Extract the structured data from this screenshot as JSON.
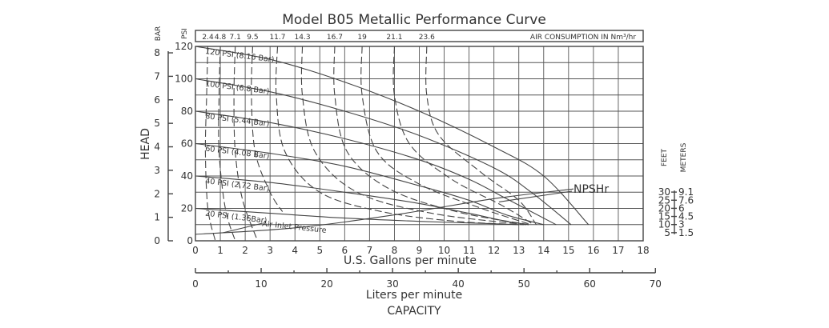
{
  "chart_data": {
    "type": "line",
    "title": "Model B05 Metallic Performance Curve",
    "xlabel": "U.S. Gallons per minute",
    "x2label": "Liters per minute",
    "capacity_label": "CAPACITY",
    "head_label": "HEAD",
    "psi_label": "PSI",
    "bar_label": "BAR",
    "feet_label": "FEET",
    "meters_label": "METERS",
    "air_label": "AIR CONSUMPTION IN Nm³/hr",
    "npshr_label": "NPSHr",
    "xlim": [
      0,
      18
    ],
    "ylim": [
      0,
      120
    ],
    "x_ticks": [
      "0",
      "1",
      "2",
      "3",
      "4",
      "5",
      "6",
      "7",
      "8",
      "9",
      "10",
      "11",
      "12",
      "13",
      "14",
      "15",
      "16",
      "17",
      "18"
    ],
    "y_ticks": [
      "0",
      "20",
      "40",
      "60",
      "80",
      "100",
      "120"
    ],
    "bar_ticks": [
      "0",
      "1",
      "2",
      "3",
      "4",
      "5",
      "6",
      "7",
      "8"
    ],
    "lpm_ticks": [
      "0",
      "10",
      "20",
      "30",
      "40",
      "50",
      "60",
      "70"
    ],
    "feet_ticks": [
      "5",
      "10",
      "15",
      "20",
      "25",
      "30"
    ],
    "meters_ticks": [
      "1.5",
      "3",
      "4.5",
      "6",
      "7.6",
      "9.1"
    ],
    "air_ticks": [
      "2.4",
      "4.8",
      "7.1",
      "9.5",
      "11.7",
      "14.3",
      "16.7",
      "19",
      "21.1",
      "23.6"
    ],
    "pressure_curves": [
      {
        "name": "120 PSI (8.16 Bar)",
        "points": [
          [
            0,
            120
          ],
          [
            3,
            112
          ],
          [
            6,
            98
          ],
          [
            9,
            80
          ],
          [
            12,
            58
          ],
          [
            14,
            40
          ],
          [
            15.8,
            10
          ]
        ]
      },
      {
        "name": "100 PSI (6.8 Bar)",
        "points": [
          [
            0,
            100
          ],
          [
            3,
            92
          ],
          [
            6,
            80
          ],
          [
            9,
            65
          ],
          [
            12,
            45
          ],
          [
            13.5,
            30
          ],
          [
            15.1,
            10
          ]
        ]
      },
      {
        "name": "80 PSI (5.44 Bar)",
        "points": [
          [
            0,
            80
          ],
          [
            3,
            73
          ],
          [
            6,
            63
          ],
          [
            9,
            50
          ],
          [
            11,
            38
          ],
          [
            12.5,
            26
          ],
          [
            14.5,
            10
          ]
        ]
      },
      {
        "name": "60 PSI (4.08 Bar)",
        "points": [
          [
            0,
            60
          ],
          [
            3,
            54
          ],
          [
            6,
            46
          ],
          [
            9,
            34
          ],
          [
            11,
            25
          ],
          [
            12.5,
            16
          ],
          [
            14,
            10
          ]
        ]
      },
      {
        "name": "40 PSI (2.72 Bar)",
        "points": [
          [
            0,
            40
          ],
          [
            3,
            36
          ],
          [
            6,
            30
          ],
          [
            9,
            23
          ],
          [
            11,
            17
          ],
          [
            12.5,
            12
          ],
          [
            13.4,
            10
          ]
        ]
      },
      {
        "name": "20 PSI (1.36Bar)",
        "points": [
          [
            0,
            20
          ],
          [
            3,
            17
          ],
          [
            6,
            14
          ],
          [
            9,
            12
          ],
          [
            11,
            11
          ],
          [
            13,
            10
          ]
        ]
      }
    ],
    "npshr_curve": {
      "name": "NPSHr",
      "points": [
        [
          0,
          4
        ],
        [
          4,
          8
        ],
        [
          8,
          16
        ],
        [
          12,
          26
        ],
        [
          15.2,
          32
        ]
      ]
    },
    "air_curves": [
      {
        "value": 2.4,
        "points": [
          [
            0.5,
            120
          ],
          [
            0.45,
            90
          ],
          [
            0.4,
            55
          ],
          [
            0.5,
            20
          ],
          [
            0.8,
            0
          ]
        ]
      },
      {
        "value": 4.8,
        "points": [
          [
            1.0,
            120
          ],
          [
            0.95,
            90
          ],
          [
            0.95,
            55
          ],
          [
            1.2,
            20
          ],
          [
            1.6,
            0
          ]
        ]
      },
      {
        "value": 7.1,
        "points": [
          [
            1.6,
            120
          ],
          [
            1.55,
            90
          ],
          [
            1.6,
            55
          ],
          [
            1.9,
            25
          ],
          [
            2.5,
            0
          ]
        ]
      },
      {
        "value": 9.5,
        "points": [
          [
            2.3,
            120
          ],
          [
            2.25,
            90
          ],
          [
            2.4,
            55
          ],
          [
            3.0,
            30
          ],
          [
            3.5,
            18
          ]
        ]
      },
      {
        "value": 11.7,
        "points": [
          [
            3.3,
            120
          ],
          [
            3.25,
            90
          ],
          [
            3.6,
            55
          ],
          [
            5.0,
            30
          ],
          [
            7.5,
            18
          ],
          [
            10.5,
            12
          ],
          [
            13.2,
            10
          ]
        ]
      },
      {
        "value": 14.3,
        "points": [
          [
            4.3,
            120
          ],
          [
            4.3,
            90
          ],
          [
            4.8,
            55
          ],
          [
            6.5,
            30
          ],
          [
            9.5,
            17
          ],
          [
            13.3,
            10
          ]
        ]
      },
      {
        "value": 16.7,
        "points": [
          [
            5.6,
            120
          ],
          [
            5.6,
            90
          ],
          [
            6.1,
            55
          ],
          [
            7.8,
            32
          ],
          [
            10.5,
            18
          ],
          [
            13.4,
            10
          ]
        ]
      },
      {
        "value": 19,
        "points": [
          [
            6.7,
            120
          ],
          [
            6.7,
            90
          ],
          [
            7.3,
            55
          ],
          [
            9.0,
            35
          ],
          [
            11.5,
            20
          ],
          [
            13.5,
            10
          ]
        ]
      },
      {
        "value": 21.1,
        "points": [
          [
            8.0,
            120
          ],
          [
            8.0,
            90
          ],
          [
            8.6,
            60
          ],
          [
            10.3,
            38
          ],
          [
            12.3,
            22
          ],
          [
            13.6,
            10
          ]
        ]
      },
      {
        "value": 23.6,
        "points": [
          [
            9.3,
            120
          ],
          [
            9.3,
            90
          ],
          [
            9.8,
            65
          ],
          [
            11.5,
            42
          ],
          [
            13.0,
            25
          ],
          [
            13.7,
            10
          ]
        ]
      }
    ],
    "annotation": "Air Inlet Pressure"
  }
}
